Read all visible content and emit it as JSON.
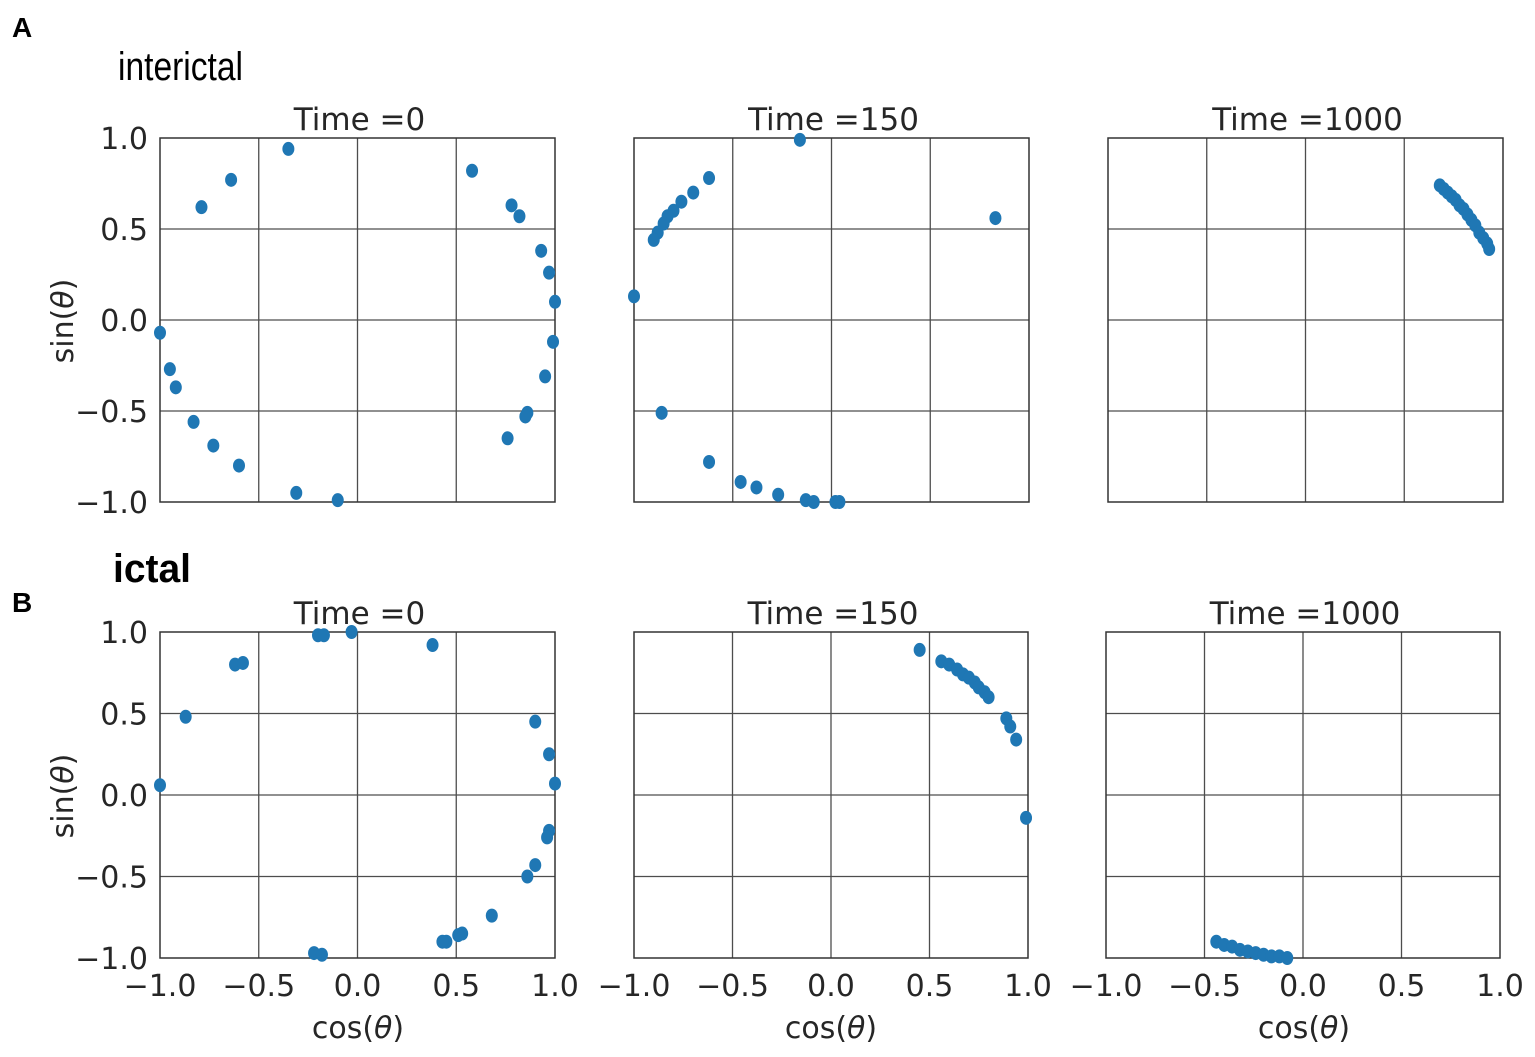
{
  "panels": [
    {
      "letter": "A",
      "title": "interictal"
    },
    {
      "letter": "B",
      "title": "ictal"
    }
  ],
  "axes_labels": {
    "x_prefix": "cos(",
    "x_var": "θ",
    "x_suffix": ")",
    "y_prefix": "sin(",
    "y_var": "θ",
    "y_suffix": ")"
  },
  "ticks": [
    "−1.0",
    "−0.5",
    "0.0",
    "0.5",
    "1.0"
  ],
  "tick_values": [
    -1.0,
    -0.5,
    0.0,
    0.5,
    1.0
  ],
  "colors": {
    "points": "#1f77b4",
    "grid": "#4d4d4d",
    "frame": "#333333"
  },
  "chart_data": [
    {
      "type": "scatter",
      "row": "interictal",
      "title": "Time =0",
      "xlim": [
        -1,
        1
      ],
      "ylim": [
        -1,
        1
      ],
      "grid": true,
      "points": [
        [
          -0.35,
          0.94
        ],
        [
          -0.64,
          0.77
        ],
        [
          -0.79,
          0.62
        ],
        [
          0.58,
          0.82
        ],
        [
          0.78,
          0.63
        ],
        [
          0.82,
          0.57
        ],
        [
          0.93,
          0.38
        ],
        [
          0.97,
          0.26
        ],
        [
          1.0,
          0.1
        ],
        [
          -1.0,
          -0.07
        ],
        [
          -0.95,
          -0.27
        ],
        [
          -0.92,
          -0.37
        ],
        [
          -0.83,
          -0.56
        ],
        [
          -0.73,
          -0.69
        ],
        [
          -0.6,
          -0.8
        ],
        [
          -0.31,
          -0.95
        ],
        [
          -0.1,
          -0.99
        ],
        [
          0.99,
          -0.12
        ],
        [
          0.95,
          -0.31
        ],
        [
          0.86,
          -0.51
        ],
        [
          0.85,
          -0.53
        ],
        [
          0.76,
          -0.65
        ]
      ]
    },
    {
      "type": "scatter",
      "row": "interictal",
      "title": "Time =150",
      "xlim": [
        -1,
        1
      ],
      "ylim": [
        -1,
        1
      ],
      "grid": true,
      "points": [
        [
          -0.16,
          0.99
        ],
        [
          0.83,
          0.56
        ],
        [
          -0.62,
          0.78
        ],
        [
          -0.7,
          0.7
        ],
        [
          -0.76,
          0.65
        ],
        [
          -0.8,
          0.6
        ],
        [
          -0.83,
          0.57
        ],
        [
          -0.85,
          0.53
        ],
        [
          -0.88,
          0.48
        ],
        [
          -0.9,
          0.44
        ],
        [
          -1.0,
          0.13
        ],
        [
          -0.86,
          -0.51
        ],
        [
          -0.62,
          -0.78
        ],
        [
          -0.46,
          -0.89
        ],
        [
          -0.38,
          -0.92
        ],
        [
          -0.27,
          -0.96
        ],
        [
          -0.13,
          -0.99
        ],
        [
          -0.09,
          -1.0
        ],
        [
          0.02,
          -1.0
        ],
        [
          0.04,
          -1.0
        ]
      ]
    },
    {
      "type": "scatter",
      "row": "interictal",
      "title": "Time =1000",
      "xlim": [
        -1,
        1
      ],
      "ylim": [
        -1,
        1
      ],
      "grid": true,
      "points": [
        [
          0.68,
          0.74
        ],
        [
          0.7,
          0.72
        ],
        [
          0.72,
          0.7
        ],
        [
          0.74,
          0.68
        ],
        [
          0.76,
          0.66
        ],
        [
          0.78,
          0.63
        ],
        [
          0.8,
          0.61
        ],
        [
          0.82,
          0.58
        ],
        [
          0.84,
          0.55
        ],
        [
          0.86,
          0.52
        ],
        [
          0.88,
          0.48
        ],
        [
          0.9,
          0.45
        ],
        [
          0.92,
          0.42
        ],
        [
          0.93,
          0.39
        ]
      ]
    },
    {
      "type": "scatter",
      "row": "ictal",
      "title": "Time =0",
      "xlim": [
        -1,
        1
      ],
      "ylim": [
        -1,
        1
      ],
      "grid": true,
      "points": [
        [
          -0.2,
          0.98
        ],
        [
          -0.17,
          0.98
        ],
        [
          -0.03,
          1.0
        ],
        [
          0.38,
          0.92
        ],
        [
          -0.62,
          0.8
        ],
        [
          -0.58,
          0.81
        ],
        [
          -0.87,
          0.48
        ],
        [
          -1.0,
          0.06
        ],
        [
          0.9,
          0.45
        ],
        [
          0.97,
          0.25
        ],
        [
          1.0,
          0.07
        ],
        [
          0.97,
          -0.22
        ],
        [
          0.96,
          -0.26
        ],
        [
          0.9,
          -0.43
        ],
        [
          0.86,
          -0.5
        ],
        [
          0.68,
          -0.74
        ],
        [
          0.53,
          -0.85
        ],
        [
          0.51,
          -0.86
        ],
        [
          0.45,
          -0.9
        ],
        [
          0.43,
          -0.9
        ],
        [
          -0.22,
          -0.97
        ],
        [
          -0.18,
          -0.98
        ]
      ]
    },
    {
      "type": "scatter",
      "row": "ictal",
      "title": "Time =150",
      "xlim": [
        -1,
        1
      ],
      "ylim": [
        -1,
        1
      ],
      "grid": true,
      "points": [
        [
          0.45,
          0.89
        ],
        [
          0.56,
          0.82
        ],
        [
          0.6,
          0.8
        ],
        [
          0.64,
          0.77
        ],
        [
          0.67,
          0.74
        ],
        [
          0.7,
          0.72
        ],
        [
          0.73,
          0.69
        ],
        [
          0.75,
          0.66
        ],
        [
          0.78,
          0.63
        ],
        [
          0.8,
          0.6
        ],
        [
          0.89,
          0.47
        ],
        [
          0.91,
          0.42
        ],
        [
          0.94,
          0.34
        ],
        [
          0.99,
          -0.14
        ]
      ]
    },
    {
      "type": "scatter",
      "row": "ictal",
      "title": "Time =1000",
      "xlim": [
        -1,
        1
      ],
      "ylim": [
        -1,
        1
      ],
      "grid": true,
      "points": [
        [
          -0.44,
          -0.9
        ],
        [
          -0.4,
          -0.92
        ],
        [
          -0.36,
          -0.93
        ],
        [
          -0.32,
          -0.95
        ],
        [
          -0.28,
          -0.96
        ],
        [
          -0.24,
          -0.97
        ],
        [
          -0.2,
          -0.98
        ],
        [
          -0.16,
          -0.99
        ],
        [
          -0.12,
          -0.99
        ],
        [
          -0.08,
          -1.0
        ]
      ]
    }
  ]
}
